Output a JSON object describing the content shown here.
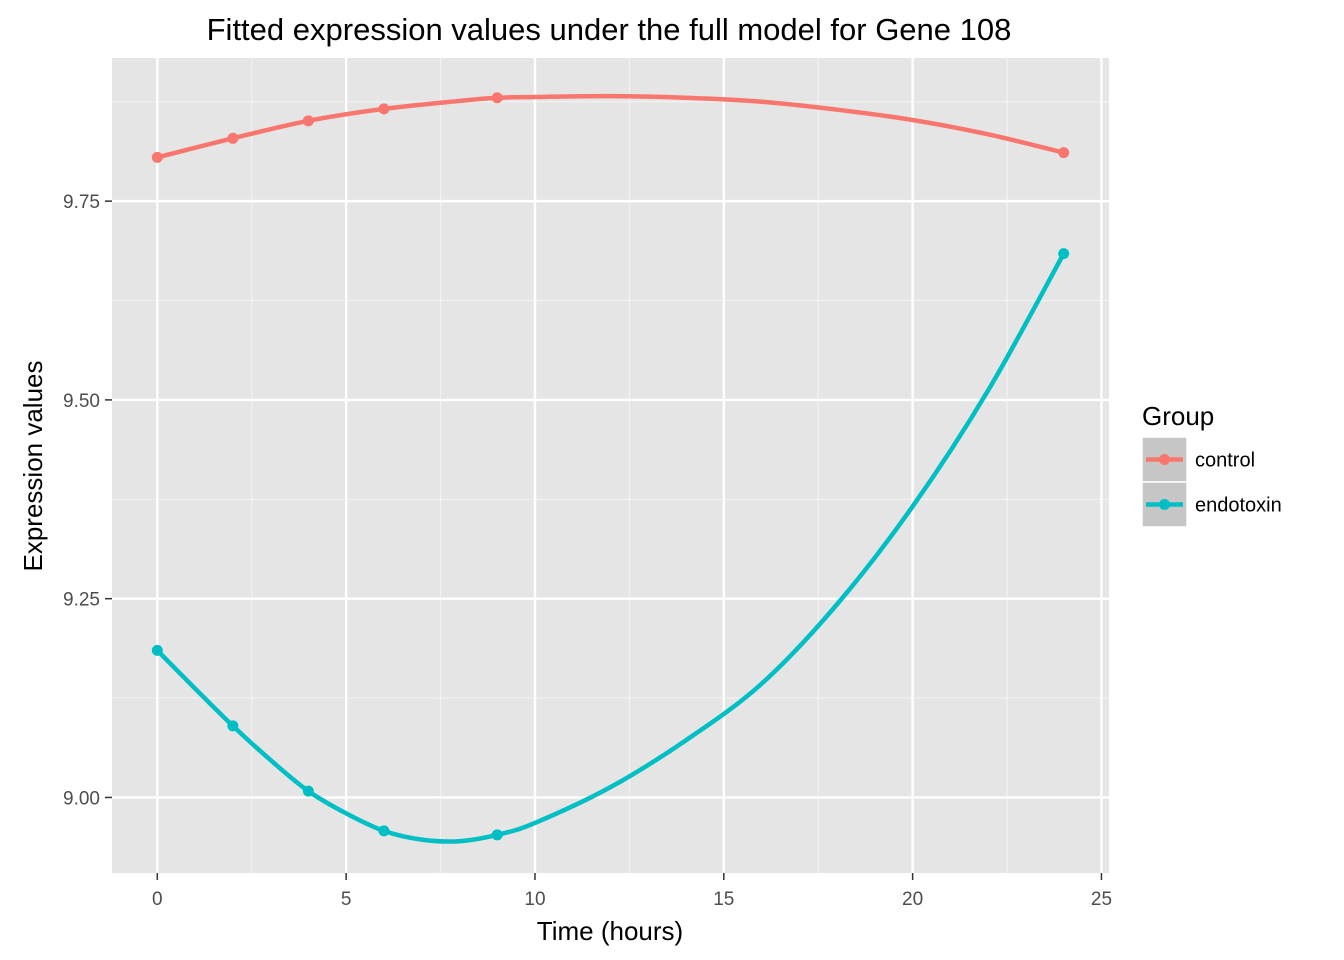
{
  "chart_data": {
    "type": "line",
    "title": "Fitted expression values under the full model for Gene 108",
    "xlabel": "Time (hours)",
    "ylabel": "Expression values",
    "xlim": [
      -1.2,
      25.2
    ],
    "ylim": [
      8.905,
      9.93
    ],
    "x_ticks": [
      0,
      5,
      10,
      15,
      20,
      25
    ],
    "x_tick_labels": [
      "0",
      "5",
      "10",
      "15",
      "20",
      "25"
    ],
    "y_ticks": [
      9.0,
      9.25,
      9.5,
      9.75
    ],
    "y_tick_labels": [
      "9.00",
      "9.25",
      "9.50",
      "9.75"
    ],
    "grid": true,
    "legend": {
      "title": "Group",
      "placement": "right"
    },
    "series": [
      {
        "name": "control",
        "color": "#F8766D",
        "points": {
          "x": [
            0,
            2,
            4,
            6,
            9,
            24
          ],
          "y": [
            9.805,
            9.829,
            9.851,
            9.866,
            9.88,
            9.811
          ]
        },
        "curve": {
          "x": [
            0,
            2,
            4,
            6,
            8,
            9,
            10,
            12,
            14,
            16,
            18,
            20,
            22,
            24
          ],
          "y": [
            9.805,
            9.829,
            9.851,
            9.866,
            9.876,
            9.88,
            9.881,
            9.882,
            9.88,
            9.875,
            9.865,
            9.852,
            9.834,
            9.811
          ]
        }
      },
      {
        "name": "endotoxin",
        "color": "#00BFC4",
        "points": {
          "x": [
            0,
            2,
            4,
            6,
            9,
            24
          ],
          "y": [
            9.185,
            9.09,
            9.008,
            8.958,
            8.953,
            9.684
          ]
        },
        "curve": {
          "x": [
            0,
            1,
            2,
            3,
            4,
            5,
            6,
            7,
            8,
            9,
            10,
            12,
            14,
            16,
            18,
            20,
            22,
            24
          ],
          "y": [
            9.185,
            9.137,
            9.09,
            9.047,
            9.008,
            8.98,
            8.958,
            8.947,
            8.945,
            8.953,
            8.968,
            9.013,
            9.072,
            9.143,
            9.243,
            9.366,
            9.512,
            9.684
          ]
        }
      }
    ]
  }
}
